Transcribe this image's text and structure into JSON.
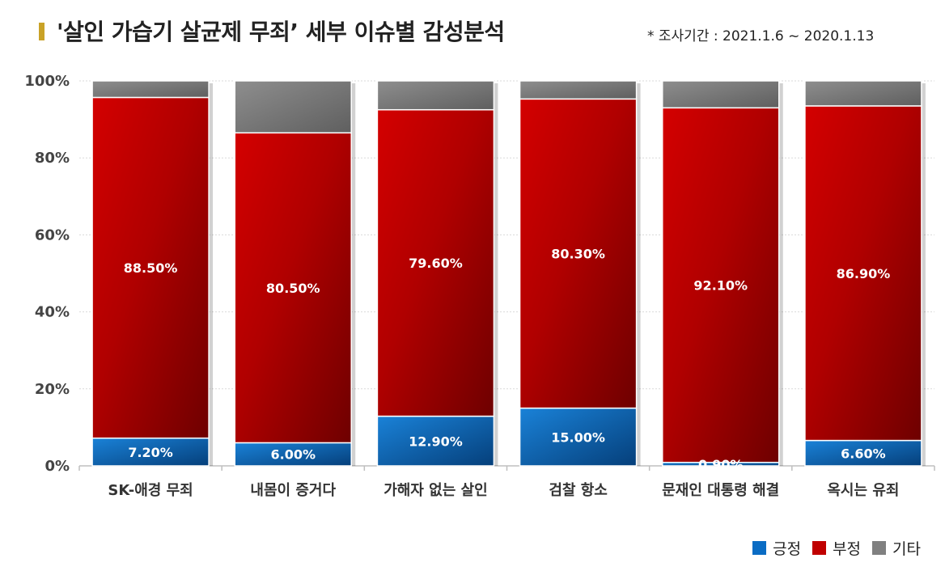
{
  "header": {
    "title": "'살인 가습기 살균제 무죄’ 세부 이슈별 감성분석",
    "period": "* 조사기간 : 2021.1.6 ~ 2020.1.13"
  },
  "colors": {
    "positive": "#0a6cc4",
    "negative": "#c00000",
    "other": "#808080",
    "title_mark": "#c9a227"
  },
  "chart_data": {
    "type": "bar",
    "stacked": true,
    "categories": [
      "SK-애경 무죄",
      "내몸이 증거다",
      "가해자 없는 살인",
      "검찰 항소",
      "문재인 대통령 해결",
      "옥시는 유죄"
    ],
    "series": [
      {
        "name": "긍정",
        "values": [
          7.2,
          6.0,
          12.9,
          15.0,
          0.9,
          6.6
        ],
        "labels": [
          "7.20%",
          "6.00%",
          "12.90%",
          "15.00%",
          "0.90%",
          "6.60%"
        ]
      },
      {
        "name": "부정",
        "values": [
          88.5,
          80.5,
          79.6,
          80.3,
          92.1,
          86.9
        ],
        "labels": [
          "88.50%",
          "80.50%",
          "79.60%",
          "80.30%",
          "92.10%",
          "86.90%"
        ]
      },
      {
        "name": "기타",
        "values": [
          4.3,
          13.5,
          7.5,
          4.7,
          7.0,
          6.5
        ]
      }
    ],
    "yticks": [
      "0%",
      "20%",
      "40%",
      "60%",
      "80%",
      "100%"
    ],
    "ylim": [
      0,
      100
    ],
    "grid": true,
    "legend_position": "bottom-right"
  }
}
